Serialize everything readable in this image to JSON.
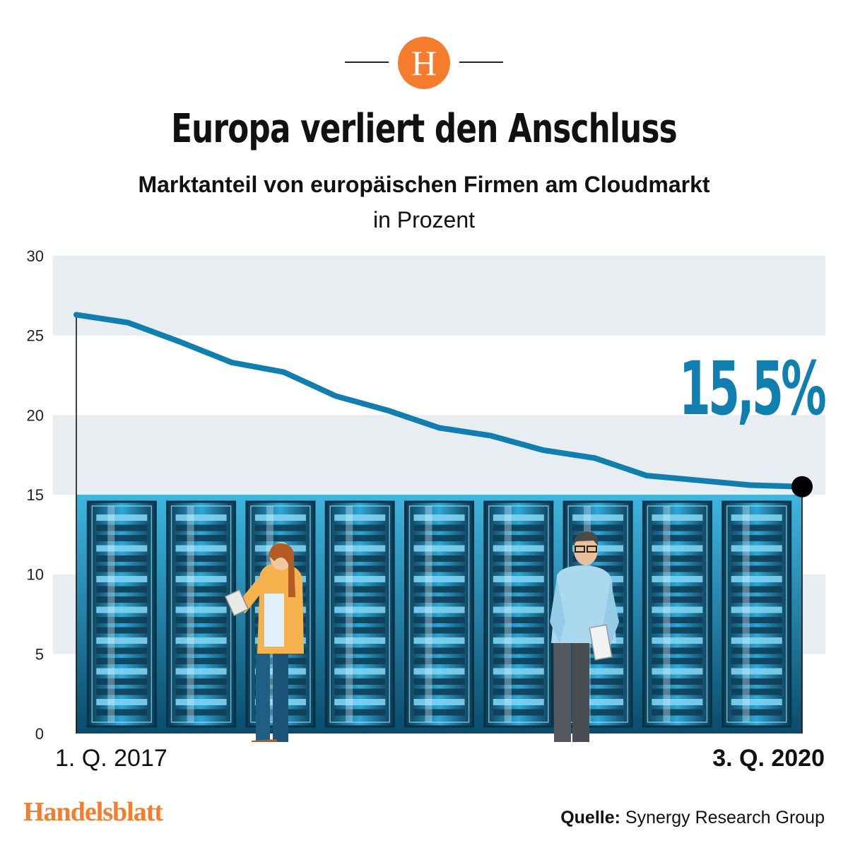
{
  "header": {
    "logo_letter": "H",
    "title": "Europa verliert den Anschluss",
    "subtitle": "Marktanteil von europäischen Firmen am Cloudmarkt",
    "unit": "in Prozent"
  },
  "chart_data": {
    "type": "line",
    "title": "Europa verliert den Anschluss",
    "subtitle": "Marktanteil von europäischen Firmen am Cloudmarkt",
    "ylabel": "in Prozent",
    "ylim": [
      0,
      30
    ],
    "yticks": [
      "0",
      "5",
      "10",
      "15",
      "20",
      "25",
      "30"
    ],
    "x_labels": [
      "1. Q. 2017",
      "3. Q. 2020"
    ],
    "grid": "alternating horizontal bands",
    "series": [
      {
        "values": [
          26.3,
          25.8,
          24.6,
          23.3,
          22.7,
          21.2,
          20.3,
          19.2,
          18.7,
          17.8,
          17.3,
          16.2,
          15.9,
          15.6,
          15.5
        ],
        "color": "#0e7fae"
      }
    ],
    "annotation": "15,5%",
    "annotation_color": "#0e7fae"
  },
  "footer": {
    "brand": "Handelsblatt",
    "source_label": "Quelle:",
    "source_value": "Synergy Research Group"
  }
}
